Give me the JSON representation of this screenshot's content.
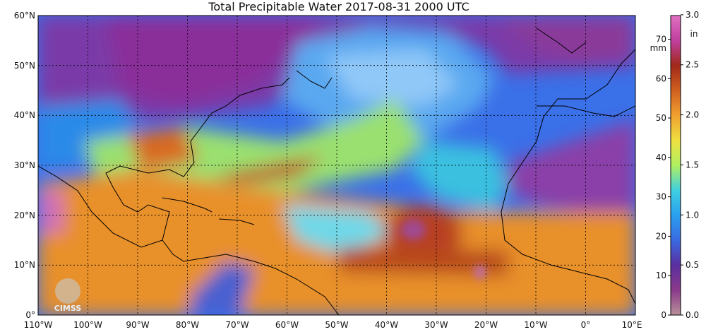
{
  "title": "Total Precipitable Water  2017-08-31 2000 UTC",
  "map": {
    "lat_labels": [
      "60°N",
      "50°N",
      "40°N",
      "30°N",
      "20°N",
      "10°N",
      "0°"
    ],
    "lon_labels": [
      "110°W",
      "100°W",
      "90°W",
      "80°W",
      "70°W",
      "60°W",
      "50°W",
      "40°W",
      "30°W",
      "20°W",
      "10°W",
      "0°",
      "10°E"
    ],
    "lat_range": [
      0,
      60
    ],
    "lon_range": [
      -110,
      10
    ],
    "grid": true
  },
  "colorbar": {
    "mm_unit": "mm",
    "in_unit": "in",
    "mm_ticks": [
      "70",
      "60",
      "50",
      "40",
      "30",
      "20",
      "10",
      "0"
    ],
    "in_ticks": [
      "3.0",
      "2.5",
      "2.0",
      "1.5",
      "1.0",
      "0.5",
      "0.0"
    ],
    "mm_range": [
      0,
      76
    ],
    "colors": [
      "#b8909a",
      "#8a3a8a",
      "#5a2fa0",
      "#3a6ae0",
      "#2aa0f0",
      "#40d0e0",
      "#b0f060",
      "#f0e040",
      "#f0a030",
      "#d06020",
      "#a02818",
      "#c040a0",
      "#e070c0"
    ]
  },
  "logo": {
    "text": "CIMSS"
  }
}
